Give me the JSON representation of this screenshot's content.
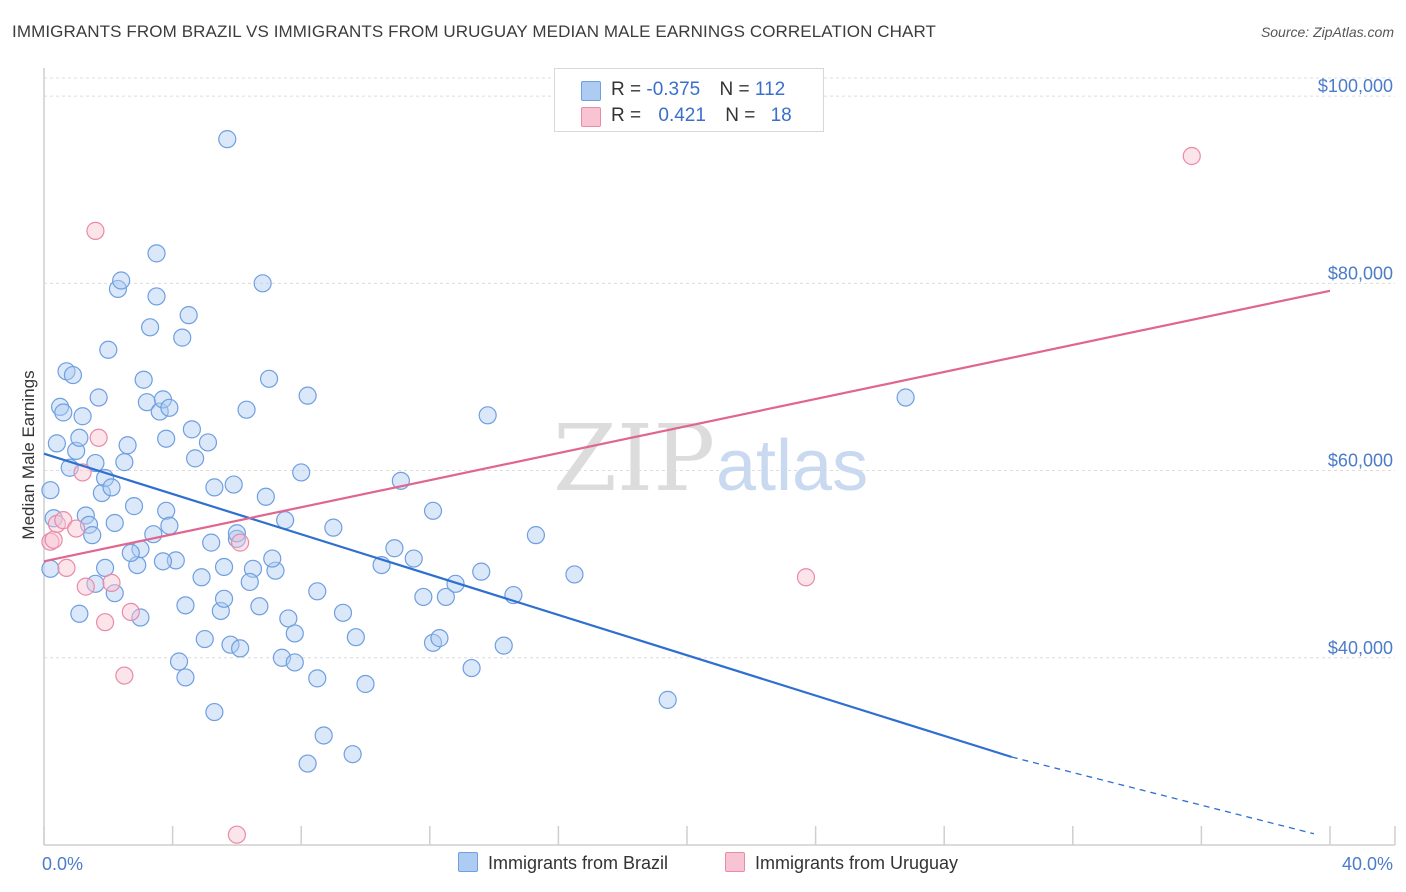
{
  "title": "IMMIGRANTS FROM BRAZIL VS IMMIGRANTS FROM URUGUAY MEDIAN MALE EARNINGS CORRELATION CHART",
  "source": "Source: ZipAtlas.com",
  "watermark": {
    "zip": "ZIP",
    "atlas": "atlas"
  },
  "legend": {
    "rows": [
      {
        "r_label": "R = ",
        "r_value": "-0.375",
        "n_label": "N = ",
        "n_value": "112",
        "color": "#aecbf2",
        "border": "#6f9fe0"
      },
      {
        "r_label": "R = ",
        "r_value": "0.421",
        "n_label": "N = ",
        "n_value": "18",
        "color": "#f8c4d3",
        "border": "#e98aa8"
      }
    ]
  },
  "bottom_legend": [
    {
      "label": "Immigrants from Brazil",
      "color": "#aecbf2",
      "border": "#6f9fe0"
    },
    {
      "label": "Immigrants from Uruguay",
      "color": "#f8c4d3",
      "border": "#e98aa8"
    }
  ],
  "chart_data": {
    "type": "scatter",
    "title": "IMMIGRANTS FROM BRAZIL VS IMMIGRANTS FROM URUGUAY MEDIAN MALE EARNINGS CORRELATION CHART",
    "ylabel": "Median Male Earnings",
    "xlabel": "",
    "xlim": [
      0,
      40
    ],
    "ylim": [
      20000,
      103000
    ],
    "x_tick_labels": [
      {
        "x": 0,
        "label": "0.0%"
      },
      {
        "x": 40,
        "label": "40.0%"
      }
    ],
    "y_tick_labels": [
      {
        "y": 40000,
        "label": "$40,000"
      },
      {
        "y": 60000,
        "label": "$60,000"
      },
      {
        "y": 80000,
        "label": "$80,000"
      },
      {
        "y": 100000,
        "label": "$100,000"
      }
    ],
    "grid": true,
    "series": [
      {
        "name": "Immigrants from Brazil",
        "color": "#6f9fe0",
        "fill": "rgba(174,203,242,0.45)",
        "trend": {
          "x0": 0,
          "y0": 61800,
          "x1": 30.1,
          "y1": 29400,
          "dashed_to_x": 39.5,
          "dashed_to_y": 21200,
          "color": "#2f6fd0"
        },
        "points": [
          [
            0.2,
            57900
          ],
          [
            0.3,
            54900
          ],
          [
            0.2,
            49500
          ],
          [
            0.4,
            62900
          ],
          [
            0.5,
            66800
          ],
          [
            0.6,
            66200
          ],
          [
            0.7,
            70600
          ],
          [
            0.8,
            60300
          ],
          [
            0.9,
            70200
          ],
          [
            1.0,
            62100
          ],
          [
            1.1,
            63500
          ],
          [
            1.2,
            65800
          ],
          [
            1.3,
            55200
          ],
          [
            1.4,
            54200
          ],
          [
            1.5,
            53100
          ],
          [
            1.6,
            60800
          ],
          [
            1.7,
            67800
          ],
          [
            1.8,
            57600
          ],
          [
            1.9,
            59200
          ],
          [
            2.0,
            72900
          ],
          [
            2.1,
            58200
          ],
          [
            2.2,
            54400
          ],
          [
            2.3,
            79400
          ],
          [
            2.4,
            80300
          ],
          [
            2.5,
            60900
          ],
          [
            2.6,
            62700
          ],
          [
            2.8,
            56200
          ],
          [
            2.9,
            49900
          ],
          [
            3.0,
            51600
          ],
          [
            3.1,
            69700
          ],
          [
            3.2,
            67300
          ],
          [
            3.3,
            75300
          ],
          [
            3.4,
            53200
          ],
          [
            3.5,
            83200
          ],
          [
            3.5,
            78600
          ],
          [
            3.6,
            66300
          ],
          [
            3.7,
            67600
          ],
          [
            3.8,
            55700
          ],
          [
            3.8,
            63400
          ],
          [
            3.9,
            66700
          ],
          [
            4.1,
            50400
          ],
          [
            4.2,
            39600
          ],
          [
            4.3,
            74200
          ],
          [
            4.4,
            37900
          ],
          [
            4.5,
            76600
          ],
          [
            4.6,
            64400
          ],
          [
            4.7,
            61300
          ],
          [
            4.9,
            48600
          ],
          [
            5.0,
            42000
          ],
          [
            5.1,
            63000
          ],
          [
            5.2,
            52300
          ],
          [
            5.3,
            58200
          ],
          [
            5.3,
            34200
          ],
          [
            5.5,
            45000
          ],
          [
            5.6,
            49700
          ],
          [
            5.7,
            95400
          ],
          [
            5.8,
            41400
          ],
          [
            5.9,
            58500
          ],
          [
            6.0,
            52700
          ],
          [
            6.1,
            41000
          ],
          [
            6.3,
            66500
          ],
          [
            6.5,
            49500
          ],
          [
            6.7,
            45500
          ],
          [
            6.8,
            80000
          ],
          [
            6.9,
            57200
          ],
          [
            7.0,
            69800
          ],
          [
            7.2,
            49300
          ],
          [
            7.4,
            40000
          ],
          [
            7.5,
            54700
          ],
          [
            7.6,
            44200
          ],
          [
            7.8,
            39500
          ],
          [
            7.8,
            42600
          ],
          [
            8.0,
            59800
          ],
          [
            8.2,
            68000
          ],
          [
            8.2,
            28700
          ],
          [
            8.5,
            37800
          ],
          [
            8.7,
            31700
          ],
          [
            9.0,
            53900
          ],
          [
            9.6,
            29700
          ],
          [
            9.7,
            42200
          ],
          [
            10.0,
            37200
          ],
          [
            10.9,
            51700
          ],
          [
            11.1,
            58900
          ],
          [
            11.8,
            46500
          ],
          [
            12.1,
            55700
          ],
          [
            12.1,
            41600
          ],
          [
            12.3,
            42100
          ],
          [
            12.5,
            46500
          ],
          [
            13.3,
            38900
          ],
          [
            13.8,
            65900
          ],
          [
            14.3,
            41300
          ],
          [
            15.3,
            53100
          ],
          [
            16.5,
            48900
          ],
          [
            19.4,
            35500
          ],
          [
            26.8,
            67800
          ],
          [
            1.1,
            44700
          ],
          [
            1.9,
            49600
          ],
          [
            2.7,
            51200
          ],
          [
            3.9,
            54100
          ],
          [
            4.4,
            45600
          ],
          [
            5.6,
            46300
          ],
          [
            6.0,
            53300
          ],
          [
            6.4,
            48100
          ],
          [
            7.1,
            50600
          ],
          [
            8.5,
            47100
          ],
          [
            9.3,
            44800
          ],
          [
            10.5,
            49900
          ],
          [
            11.5,
            50600
          ],
          [
            12.8,
            47900
          ],
          [
            13.6,
            49200
          ],
          [
            14.6,
            46700
          ],
          [
            1.6,
            47900
          ],
          [
            2.2,
            46900
          ],
          [
            3.0,
            44300
          ],
          [
            3.7,
            50300
          ]
        ]
      },
      {
        "name": "Immigrants from Uruguay",
        "color": "#e98aa8",
        "fill": "rgba(248,196,211,0.45)",
        "trend": {
          "x0": 0,
          "y0": 50300,
          "x1": 40,
          "y1": 79200,
          "color": "#e0668f"
        },
        "points": [
          [
            0.2,
            52400
          ],
          [
            0.3,
            52600
          ],
          [
            0.4,
            54300
          ],
          [
            0.6,
            54700
          ],
          [
            0.7,
            49600
          ],
          [
            1.0,
            53800
          ],
          [
            1.2,
            59800
          ],
          [
            1.3,
            47600
          ],
          [
            1.6,
            85600
          ],
          [
            1.7,
            63500
          ],
          [
            1.9,
            43800
          ],
          [
            2.1,
            48000
          ],
          [
            2.5,
            38100
          ],
          [
            2.7,
            44900
          ],
          [
            6.0,
            21100
          ],
          [
            6.1,
            52300
          ],
          [
            23.7,
            48600
          ],
          [
            35.7,
            93600
          ]
        ]
      }
    ]
  }
}
